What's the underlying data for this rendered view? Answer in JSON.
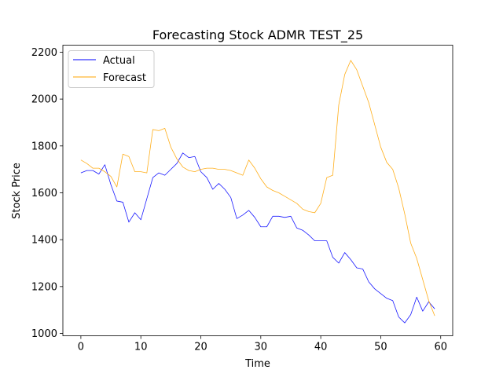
{
  "chart_data": {
    "type": "line",
    "title": "Forecasting Stock ADMR TEST_25",
    "xlabel": "Time",
    "ylabel": "Stock Price",
    "xlim": [
      -3,
      62
    ],
    "ylim": [
      990,
      2230
    ],
    "xticks": [
      0,
      10,
      20,
      30,
      40,
      50,
      60
    ],
    "yticks": [
      1000,
      1200,
      1400,
      1600,
      1800,
      2000,
      2200
    ],
    "grid": false,
    "legend_position": "upper-left",
    "x": [
      0,
      1,
      2,
      3,
      4,
      5,
      6,
      7,
      8,
      9,
      10,
      11,
      12,
      13,
      14,
      15,
      16,
      17,
      18,
      19,
      20,
      21,
      22,
      23,
      24,
      25,
      26,
      27,
      28,
      29,
      30,
      31,
      32,
      33,
      34,
      35,
      36,
      37,
      38,
      39,
      40,
      41,
      42,
      43,
      44,
      45,
      46,
      47,
      48,
      49,
      50,
      51,
      52,
      53,
      54,
      55,
      56,
      57,
      58,
      59
    ],
    "series": [
      {
        "name": "Actual",
        "color": "#0000ff",
        "values": [
          1685,
          1695,
          1695,
          1680,
          1720,
          1635,
          1565,
          1560,
          1475,
          1515,
          1485,
          1575,
          1665,
          1685,
          1675,
          1700,
          1725,
          1770,
          1750,
          1755,
          1690,
          1665,
          1615,
          1640,
          1615,
          1580,
          1490,
          1505,
          1525,
          1495,
          1455,
          1455,
          1500,
          1500,
          1495,
          1500,
          1450,
          1440,
          1420,
          1395,
          1395,
          1395,
          1325,
          1300,
          1345,
          1315,
          1280,
          1275,
          1220,
          1190,
          1170,
          1150,
          1140,
          1070,
          1045,
          1080,
          1155,
          1095,
          1135,
          1105
        ]
      },
      {
        "name": "Forecast",
        "color": "#ffa500",
        "values": [
          1740,
          1725,
          1705,
          1705,
          1690,
          1670,
          1625,
          1765,
          1755,
          1690,
          1690,
          1685,
          1870,
          1865,
          1875,
          1795,
          1745,
          1710,
          1695,
          1690,
          1700,
          1705,
          1705,
          1700,
          1700,
          1695,
          1685,
          1675,
          1740,
          1705,
          1660,
          1625,
          1610,
          1600,
          1585,
          1570,
          1555,
          1530,
          1520,
          1515,
          1555,
          1665,
          1675,
          1975,
          2105,
          2165,
          2125,
          2055,
          1985,
          1890,
          1795,
          1730,
          1700,
          1620,
          1510,
          1385,
          1320,
          1230,
          1140,
          1075
        ]
      }
    ]
  }
}
